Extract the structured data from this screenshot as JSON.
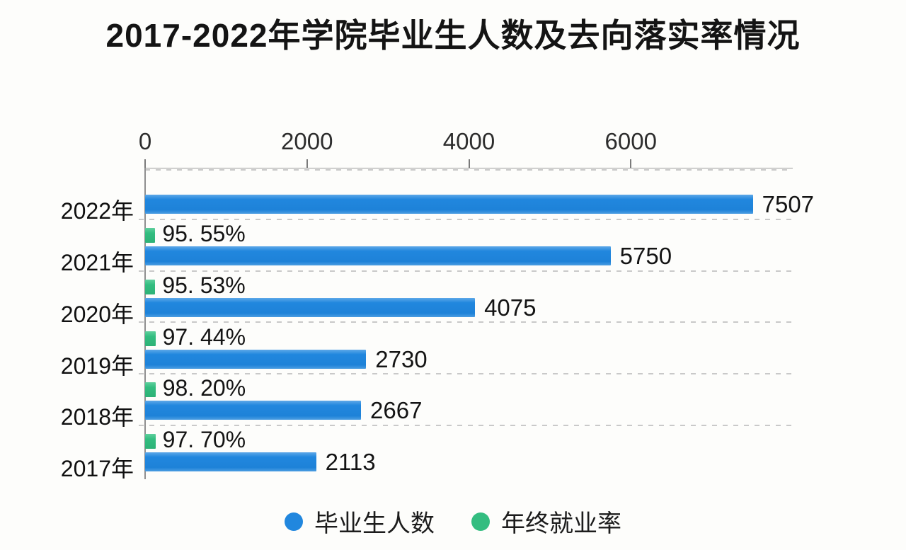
{
  "chart_data": {
    "type": "bar",
    "orientation": "horizontal",
    "title": "2017-2022年学院毕业生人数及去向落实率情况",
    "categories": [
      "2022年",
      "2021年",
      "2020年",
      "2019年",
      "2018年",
      "2017年"
    ],
    "series": [
      {
        "name": "毕业生人数",
        "color": "#2187de",
        "values": [
          7507,
          5750,
          4075,
          2730,
          2667,
          2113
        ],
        "labels": [
          "7507",
          "5750",
          "4075",
          "2730",
          "2667",
          "2113"
        ]
      },
      {
        "name": "年终就业率",
        "color": "#33bd80",
        "unit": "%",
        "values": [
          null,
          95.55,
          95.53,
          97.44,
          98.2,
          97.7
        ],
        "labels": [
          "",
          "95. 55%",
          "95. 53%",
          "97. 44%",
          "98. 20%",
          "97. 70%"
        ]
      }
    ],
    "x_axis": {
      "position": "top",
      "min": 0,
      "max": 8000,
      "ticks": [
        0,
        2000,
        4000,
        6000
      ],
      "tick_labels": [
        "0",
        "2000",
        "4000",
        "6000"
      ]
    },
    "legend": {
      "position": "bottom",
      "items": [
        {
          "label": "毕业生人数",
          "color": "#2187de"
        },
        {
          "label": "年终就业率",
          "color": "#33bd80"
        }
      ]
    },
    "grid": {
      "row_separators": "dashed",
      "color": "#c9c9c9"
    }
  }
}
